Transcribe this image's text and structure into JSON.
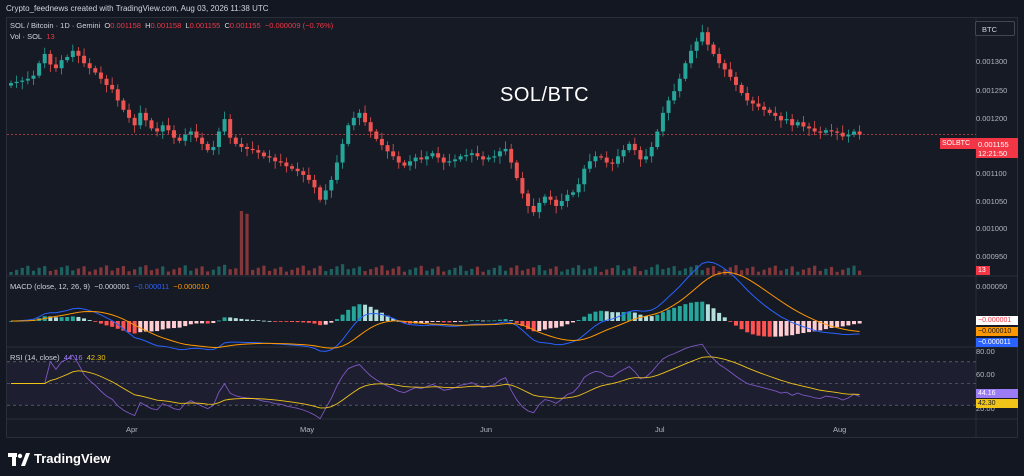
{
  "header": {
    "created_by": "Crypto_feednews created with TradingView.com, Aug 03, 2026 11:38 UTC"
  },
  "legend": {
    "symbol": "SOL / Bitcoin · 1D · Gemini",
    "o_label": "O",
    "o_val": "0.001158",
    "h_label": "H",
    "h_val": "0.001158",
    "l_label": "L",
    "l_val": "0.001155",
    "c_label": "C",
    "c_val": "0.001155",
    "change": "−0.000009 (−0.76%)",
    "vol_label": "Vol · SOL",
    "vol_val": "13"
  },
  "watermark": "SOL/BTC",
  "currency_button": "BTC",
  "price_axis": {
    "ticks": [
      "0.001300",
      "0.001250",
      "0.001200",
      "0.001100",
      "0.001050",
      "0.001000",
      "0.000950"
    ]
  },
  "price_tag": {
    "symbol": "SOLBTC",
    "price": "0.001155",
    "countdown": "12:21:50"
  },
  "volume_tag": "13",
  "macd": {
    "title": "MACD (close, 12, 26, 9)",
    "hist": "−0.000001",
    "macd": "−0.000011",
    "signal": "−0.000010",
    "axis_top": "0.000050",
    "tag_hist": "−0.000001",
    "tag_signal": "−0.000010",
    "tag_macd": "−0.000011"
  },
  "rsi": {
    "title": "RSI (14, close)",
    "rsi": "44.16",
    "ma": "42.30",
    "axis": [
      "80.00",
      "60.00",
      "20.00"
    ],
    "tag_rsi": "44.16",
    "tag_ma": "42.30"
  },
  "date_axis": [
    "Apr",
    "May",
    "Jun",
    "Jul",
    "Aug"
  ],
  "footer": {
    "brand": "TradingView"
  },
  "colors": {
    "up": "#26a69a",
    "down": "#ef5350",
    "background": "#161a25",
    "macd_line": "#2962ff",
    "signal_line": "#ff9800",
    "rsi_line": "#7e57c2",
    "rsi_ma": "#f0c419",
    "price_tag": "#f23645"
  },
  "chart_data": {
    "type": "candlestick",
    "title": "SOL/BTC",
    "interval": "1D",
    "exchange": "Gemini",
    "ylim": [
      0.00094,
      0.00133
    ],
    "closes_approx": [
      0.001238,
      0.00124,
      0.001242,
      0.001245,
      0.00125,
      0.00127,
      0.001285,
      0.001268,
      0.001262,
      0.001275,
      0.00128,
      0.00129,
      0.001282,
      0.00127,
      0.001262,
      0.001255,
      0.001245,
      0.001235,
      0.001228,
      0.00121,
      0.001195,
      0.001182,
      0.00117,
      0.00119,
      0.001178,
      0.001165,
      0.00116,
      0.00117,
      0.001162,
      0.00115,
      0.001145,
      0.001155,
      0.00116,
      0.00115,
      0.00114,
      0.00113,
      0.001135,
      0.00116,
      0.00118,
      0.00115,
      0.00114,
      0.001135,
      0.001132,
      0.00113,
      0.001126,
      0.00112,
      0.001118,
      0.001112,
      0.00111,
      0.001104,
      0.0011,
      0.001096,
      0.00109,
      0.001082,
      0.00107,
      0.00105,
      0.001065,
      0.001082,
      0.00111,
      0.00114,
      0.00117,
      0.001182,
      0.00119,
      0.001175,
      0.00116,
      0.001148,
      0.001138,
      0.001128,
      0.00112,
      0.00111,
      0.001105,
      0.001112,
      0.001118,
      0.001115,
      0.00112,
      0.001125,
      0.001118,
      0.00111,
      0.001112,
      0.001115,
      0.00112,
      0.001122,
      0.001125,
      0.00112,
      0.001115,
      0.001118,
      0.00112,
      0.001128,
      0.001132,
      0.00111,
      0.001085,
      0.00106,
      0.00104,
      0.00103,
      0.001045,
      0.001055,
      0.00105,
      0.00104,
      0.001048,
      0.001058,
      0.001062,
      0.001075,
      0.0011,
      0.001112,
      0.00112,
      0.001118,
      0.00111,
      0.001108,
      0.00112,
      0.00113,
      0.00114,
      0.00113,
      0.001115,
      0.00112,
      0.001135,
      0.00116,
      0.00119,
      0.00121,
      0.001225,
      0.001245,
      0.00127,
      0.00129,
      0.001305,
      0.00132,
      0.0013,
      0.001285,
      0.00127,
      0.00126,
      0.001248,
      0.001235,
      0.001222,
      0.00121,
      0.001205,
      0.0012,
      0.001195,
      0.00119,
      0.001185,
      0.001178,
      0.00118,
      0.00117,
      0.001175,
      0.001168,
      0.001165,
      0.00116,
      0.001158,
      0.001162,
      0.00116,
      0.001158,
      0.001152,
      0.001155,
      0.00116,
      0.001155
    ]
  }
}
